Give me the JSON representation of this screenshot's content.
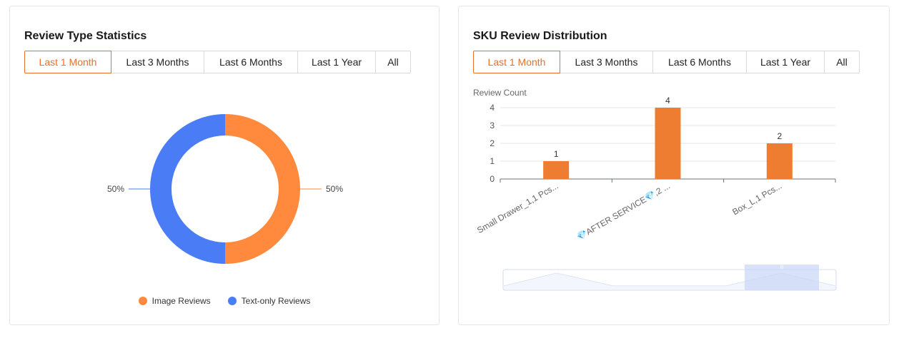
{
  "left": {
    "title": "Review Type Statistics",
    "tabs": [
      "Last 1 Month",
      "Last 3 Months",
      "Last 6 Months",
      "Last 1 Year",
      "All"
    ],
    "active_tab": 0,
    "chart_data": {
      "type": "pie",
      "subtype": "donut",
      "labels": [
        "Image Reviews",
        "Text-only Reviews"
      ],
      "values": [
        50,
        50
      ],
      "value_labels": [
        "50%",
        "50%"
      ],
      "colors": [
        "#ff8a3d",
        "#4a7df5"
      ],
      "legend_placement": "bottom"
    }
  },
  "right": {
    "title": "SKU Review Distribution",
    "tabs": [
      "Last 1 Month",
      "Last 3 Months",
      "Last 6 Months",
      "Last 1 Year",
      "All"
    ],
    "active_tab": 0,
    "chart_data": {
      "type": "bar",
      "ylabel": "Review Count",
      "categories": [
        "Small Drawer_1,1 Pcs...",
        "💎AFTER SERVICE💎,2 ...",
        "Box_L,1 Pcs..."
      ],
      "values": [
        1,
        4,
        2
      ],
      "data_labels": [
        "1",
        "4",
        "2"
      ],
      "yticks": [
        "0",
        "1",
        "2",
        "3",
        "4"
      ],
      "ylim": [
        0,
        4
      ],
      "grid": true,
      "bar_color": "#ee7d31",
      "has_data_zoom_slider": true,
      "slider_handle_label": "|||"
    }
  },
  "colors": {
    "accent": "#e4722c",
    "image_reviews": "#ff8a3d",
    "text_reviews": "#4a7df5",
    "bar": "#ee7d31"
  }
}
